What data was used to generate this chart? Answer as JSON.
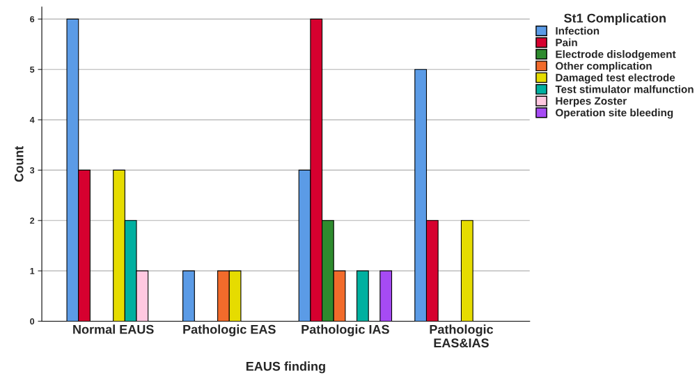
{
  "chart_data": {
    "type": "bar",
    "xlabel": "EAUS finding",
    "ylabel": "Count",
    "legend_title": "St1 Complication",
    "categories": [
      "Normal EAUS",
      "Pathologic EAS",
      "Pathologic IAS",
      "Pathologic\nEAS&IAS"
    ],
    "series": [
      {
        "name": "Infection",
        "color": "#5b9be6",
        "values": [
          6,
          1,
          3,
          5
        ]
      },
      {
        "name": "Pain",
        "color": "#d6002f",
        "values": [
          3,
          null,
          6,
          2
        ]
      },
      {
        "name": "Electrode dislodgement",
        "color": "#2e8b2e",
        "values": [
          null,
          null,
          2,
          null
        ]
      },
      {
        "name": "Other complication",
        "color": "#f26b2b",
        "values": [
          null,
          1,
          1,
          null
        ]
      },
      {
        "name": "Damaged test electrode",
        "color": "#e6dc00",
        "values": [
          3,
          1,
          null,
          2
        ]
      },
      {
        "name": "Test stimulator malfunction",
        "color": "#00b0a0",
        "values": [
          2,
          null,
          1,
          null
        ]
      },
      {
        "name": "Herpes Zoster",
        "color": "#ffc8e0",
        "values": [
          1,
          null,
          null,
          null
        ]
      },
      {
        "name": "Operation site bleeding",
        "color": "#a64bf4",
        "values": [
          null,
          null,
          1,
          null
        ]
      }
    ],
    "ylim": [
      0,
      6.24
    ],
    "yticks": [
      0,
      1,
      2,
      3,
      4,
      5,
      6
    ],
    "grid": "y",
    "legend": "top right"
  }
}
